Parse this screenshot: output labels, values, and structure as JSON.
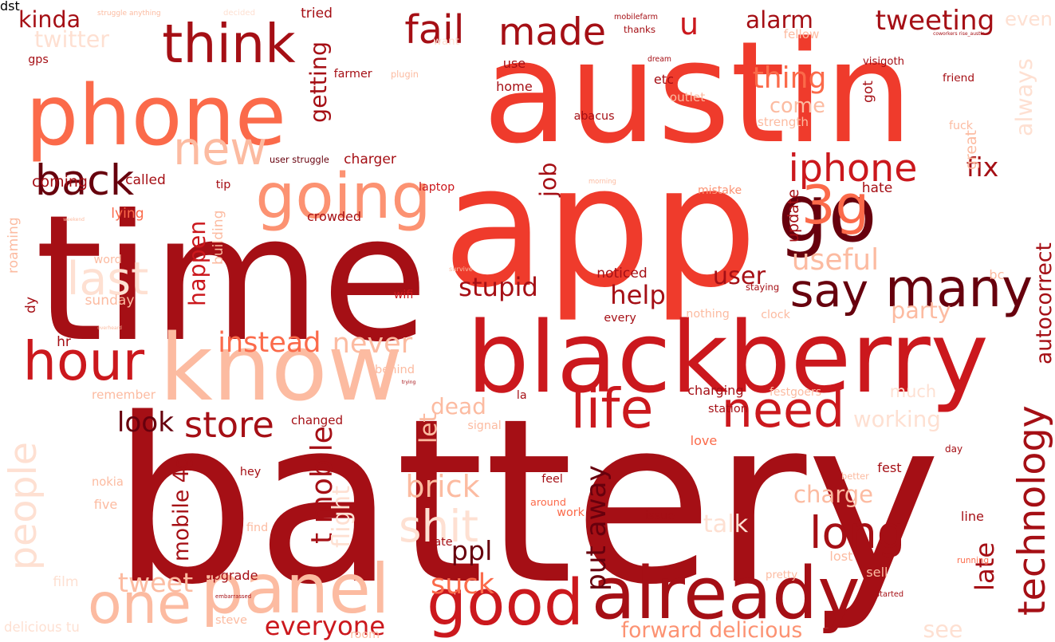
{
  "palette": {
    "maroon": "#67000d",
    "crimson": "#a50f15",
    "red": "#cb181d",
    "vermilion": "#ef3b2c",
    "salmon": "#fb6a4a",
    "peach": "#fc9272",
    "blush": "#fcbba1",
    "mist": "#fee0d2"
  },
  "words": [
    {
      "text": "battery",
      "color": "crimson"
    },
    {
      "text": "austin",
      "color": "vermilion"
    },
    {
      "text": "time",
      "color": "crimson"
    },
    {
      "text": "app",
      "color": "vermilion"
    },
    {
      "text": "blackberry",
      "color": "red"
    },
    {
      "text": "phone",
      "color": "salmon"
    },
    {
      "text": "know",
      "color": "blush"
    },
    {
      "text": "go",
      "color": "maroon"
    },
    {
      "text": "already",
      "color": "crimson"
    },
    {
      "text": "think",
      "color": "crimson"
    },
    {
      "text": "many",
      "color": "maroon"
    },
    {
      "text": "new",
      "color": "blush"
    },
    {
      "text": "going",
      "color": "peach"
    },
    {
      "text": "life",
      "color": "red"
    },
    {
      "text": "good",
      "color": "red"
    },
    {
      "text": "people",
      "color": "mist"
    },
    {
      "text": "hour",
      "color": "red"
    },
    {
      "text": "back",
      "color": "maroon"
    },
    {
      "text": "need",
      "color": "red"
    },
    {
      "text": "one",
      "color": "blush"
    },
    {
      "text": "panel",
      "color": "blush"
    },
    {
      "text": "say",
      "color": "maroon"
    },
    {
      "text": "3g",
      "color": "salmon"
    },
    {
      "text": "last",
      "color": "mist"
    },
    {
      "text": "iphone",
      "color": "red"
    },
    {
      "text": "technology",
      "color": "crimson"
    },
    {
      "text": "fail",
      "color": "crimson"
    },
    {
      "text": "made",
      "color": "crimson"
    },
    {
      "text": "u",
      "color": "red"
    },
    {
      "text": "store",
      "color": "crimson"
    },
    {
      "text": "long",
      "color": "crimson"
    },
    {
      "text": "always",
      "color": "mist"
    },
    {
      "text": "shit",
      "color": "mist"
    },
    {
      "text": "tweeting",
      "color": "crimson"
    },
    {
      "text": "autocorrect",
      "color": "crimson"
    },
    {
      "text": "useful",
      "color": "blush"
    },
    {
      "text": "charge",
      "color": "blush"
    },
    {
      "text": "brick",
      "color": "blush"
    },
    {
      "text": "working",
      "color": "mist"
    },
    {
      "text": "everyone",
      "color": "red"
    },
    {
      "text": "forward delicious",
      "color": "peach"
    },
    {
      "text": "tweet",
      "color": "blush"
    },
    {
      "text": "suck",
      "color": "salmon"
    },
    {
      "text": "t mobile",
      "color": "crimson"
    },
    {
      "text": "mobile 4g",
      "color": "crimson"
    },
    {
      "text": "put away",
      "color": "maroon"
    },
    {
      "text": "late",
      "color": "crimson"
    },
    {
      "text": "stupid",
      "color": "crimson"
    },
    {
      "text": "happen",
      "color": "red"
    },
    {
      "text": "instead",
      "color": "salmon"
    },
    {
      "text": "never",
      "color": "blush"
    },
    {
      "text": "dead",
      "color": "blush"
    },
    {
      "text": "look",
      "color": "maroon"
    },
    {
      "text": "let",
      "color": "blush"
    },
    {
      "text": "talk",
      "color": "mist"
    },
    {
      "text": "flight",
      "color": "mist"
    },
    {
      "text": "ppl",
      "color": "maroon"
    },
    {
      "text": "party",
      "color": "blush"
    },
    {
      "text": "help",
      "color": "crimson"
    },
    {
      "text": "user",
      "color": "crimson"
    },
    {
      "text": "thing",
      "color": "salmon"
    },
    {
      "text": "come",
      "color": "blush"
    },
    {
      "text": "fix",
      "color": "crimson"
    },
    {
      "text": "job",
      "color": "crimson"
    },
    {
      "text": "getting",
      "color": "crimson"
    },
    {
      "text": "twitter",
      "color": "mist"
    },
    {
      "text": "kinda",
      "color": "crimson"
    },
    {
      "text": "alarm",
      "color": "crimson"
    },
    {
      "text": "even",
      "color": "mist"
    },
    {
      "text": "see",
      "color": "mist"
    },
    {
      "text": "delicious tu",
      "color": "mist"
    },
    {
      "text": "much",
      "color": "mist"
    },
    {
      "text": "user struggle",
      "color": "maroon"
    },
    {
      "text": "charger",
      "color": "crimson"
    },
    {
      "text": "coming",
      "color": "crimson"
    },
    {
      "text": "called",
      "color": "crimson"
    },
    {
      "text": "lying",
      "color": "salmon"
    },
    {
      "text": "crowded",
      "color": "crimson"
    },
    {
      "text": "laptop",
      "color": "red"
    },
    {
      "text": "mistake",
      "color": "peach"
    },
    {
      "text": "hate",
      "color": "crimson"
    },
    {
      "text": "noticed",
      "color": "crimson"
    },
    {
      "text": "survive",
      "color": "blush"
    },
    {
      "text": "wifi",
      "color": "red"
    },
    {
      "text": "nothing",
      "color": "blush"
    },
    {
      "text": "clock",
      "color": "blush"
    },
    {
      "text": "behind",
      "color": "blush"
    },
    {
      "text": "trying",
      "color": "crimson"
    },
    {
      "text": "la",
      "color": "crimson"
    },
    {
      "text": "signal",
      "color": "blush"
    },
    {
      "text": "changed",
      "color": "crimson"
    },
    {
      "text": "charging",
      "color": "crimson"
    },
    {
      "text": "festgoers",
      "color": "blush"
    },
    {
      "text": "station",
      "color": "crimson"
    },
    {
      "text": "love",
      "color": "salmon"
    },
    {
      "text": "better",
      "color": "blush"
    },
    {
      "text": "fest",
      "color": "crimson"
    },
    {
      "text": "feel",
      "color": "crimson"
    },
    {
      "text": "around",
      "color": "salmon"
    },
    {
      "text": "work",
      "color": "salmon"
    },
    {
      "text": "issue",
      "color": "crimson"
    },
    {
      "text": "rate",
      "color": "crimson"
    },
    {
      "text": "nokia",
      "color": "blush"
    },
    {
      "text": "five",
      "color": "blush"
    },
    {
      "text": "hey",
      "color": "crimson"
    },
    {
      "text": "find",
      "color": "blush"
    },
    {
      "text": "film",
      "color": "mist"
    },
    {
      "text": "upgrade",
      "color": "crimson"
    },
    {
      "text": "embarrassed",
      "color": "crimson"
    },
    {
      "text": "steve",
      "color": "blush"
    },
    {
      "text": "room",
      "color": "blush"
    },
    {
      "text": "pretty",
      "color": "blush"
    },
    {
      "text": "sell",
      "color": "blush"
    },
    {
      "text": "started",
      "color": "crimson"
    },
    {
      "text": "lost",
      "color": "blush"
    },
    {
      "text": "running",
      "color": "salmon"
    },
    {
      "text": "line",
      "color": "crimson"
    },
    {
      "text": "day",
      "color": "crimson"
    },
    {
      "text": "bc",
      "color": "blush"
    },
    {
      "text": "update",
      "color": "crimson"
    },
    {
      "text": "staying",
      "color": "crimson"
    },
    {
      "text": "every",
      "color": "crimson"
    },
    {
      "text": "word",
      "color": "blush"
    },
    {
      "text": "sunday",
      "color": "blush"
    },
    {
      "text": "overheard",
      "color": "blush"
    },
    {
      "text": "hr",
      "color": "crimson"
    },
    {
      "text": "remember",
      "color": "blush"
    },
    {
      "text": "weekend",
      "color": "blush"
    },
    {
      "text": "dy",
      "color": "crimson"
    },
    {
      "text": "building",
      "color": "blush"
    },
    {
      "text": "roaming",
      "color": "blush"
    },
    {
      "text": "struggle anything",
      "color": "blush"
    },
    {
      "text": "decided",
      "color": "mist"
    },
    {
      "text": "tried",
      "color": "crimson"
    },
    {
      "text": "mobilefarm",
      "color": "crimson"
    },
    {
      "text": "thanks",
      "color": "crimson"
    },
    {
      "text": "fellow",
      "color": "blush"
    },
    {
      "text": "coworkers rise_austin",
      "color": "crimson"
    },
    {
      "text": "farmer",
      "color": "crimson"
    },
    {
      "text": "plugin",
      "color": "blush"
    },
    {
      "text": "use",
      "color": "crimson"
    },
    {
      "text": "home",
      "color": "crimson"
    },
    {
      "text": "dream",
      "color": "crimson"
    },
    {
      "text": "etc",
      "color": "crimson"
    },
    {
      "text": "outlet",
      "color": "blush"
    },
    {
      "text": "abacus",
      "color": "crimson"
    },
    {
      "text": "strength",
      "color": "blush"
    },
    {
      "text": "visigoth",
      "color": "crimson"
    },
    {
      "text": "friend",
      "color": "crimson"
    },
    {
      "text": "fuck",
      "color": "blush"
    },
    {
      "text": "got",
      "color": "crimson"
    },
    {
      "text": "great",
      "color": "blush"
    },
    {
      "text": "morning",
      "color": "blush"
    },
    {
      "text": "tip",
      "color": "crimson"
    },
    {
      "text": "want",
      "color": "mist"
    },
    {
      "text": "gps",
      "color": "crimson"
    },
    {
      "text": "dst",
      "color": "crimson"
    }
  ]
}
